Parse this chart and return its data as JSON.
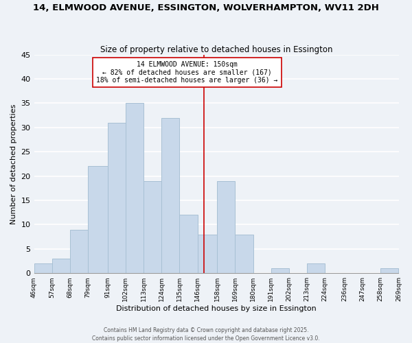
{
  "title": "14, ELMWOOD AVENUE, ESSINGTON, WOLVERHAMPTON, WV11 2DH",
  "subtitle": "Size of property relative to detached houses in Essington",
  "xlabel": "Distribution of detached houses by size in Essington",
  "ylabel": "Number of detached properties",
  "bar_color": "#c8d8ea",
  "bar_edgecolor": "#a8c0d4",
  "bins": [
    46,
    57,
    68,
    79,
    91,
    102,
    113,
    124,
    135,
    146,
    158,
    169,
    180,
    191,
    202,
    213,
    224,
    236,
    247,
    258,
    269
  ],
  "counts": [
    2,
    3,
    9,
    22,
    31,
    35,
    19,
    32,
    12,
    8,
    19,
    8,
    0,
    1,
    0,
    2,
    0,
    0,
    0,
    1
  ],
  "tick_labels": [
    "46sqm",
    "57sqm",
    "68sqm",
    "79sqm",
    "91sqm",
    "102sqm",
    "113sqm",
    "124sqm",
    "135sqm",
    "146sqm",
    "158sqm",
    "169sqm",
    "180sqm",
    "191sqm",
    "202sqm",
    "213sqm",
    "224sqm",
    "236sqm",
    "247sqm",
    "258sqm",
    "269sqm"
  ],
  "vline_x": 150,
  "vline_color": "#cc0000",
  "annotation_title": "14 ELMWOOD AVENUE: 150sqm",
  "annotation_line1": "← 82% of detached houses are smaller (167)",
  "annotation_line2": "18% of semi-detached houses are larger (36) →",
  "ylim": [
    0,
    45
  ],
  "yticks": [
    0,
    5,
    10,
    15,
    20,
    25,
    30,
    35,
    40,
    45
  ],
  "footer1": "Contains HM Land Registry data © Crown copyright and database right 2025.",
  "footer2": "Contains public sector information licensed under the Open Government Licence v3.0.",
  "background_color": "#eef2f7",
  "grid_color": "#ffffff"
}
